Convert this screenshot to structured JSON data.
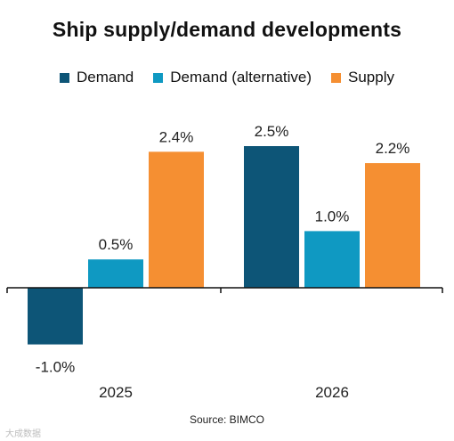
{
  "chart_data": {
    "type": "bar",
    "title": "Ship supply/demand  developments",
    "categories": [
      "2025",
      "2026"
    ],
    "series": [
      {
        "name": "Demand",
        "values": [
          -1.0,
          2.5
        ],
        "labels": [
          "-1.0%",
          "2.5%"
        ],
        "color": "#0d5577"
      },
      {
        "name": "Demand (alternative)",
        "values": [
          0.5,
          1.0
        ],
        "labels": [
          "0.5%",
          "1.0%"
        ],
        "color": "#0f99c2"
      },
      {
        "name": "Supply",
        "values": [
          2.4,
          2.2
        ],
        "labels": [
          "2.4%",
          "2.2%"
        ],
        "color": "#f58f32"
      }
    ],
    "xlabel": "",
    "ylabel": "",
    "ylim": [
      -1.0,
      2.5
    ],
    "grid": false,
    "legend_position": "top"
  },
  "source": "Source: BIMCO",
  "watermark": "大成数据"
}
